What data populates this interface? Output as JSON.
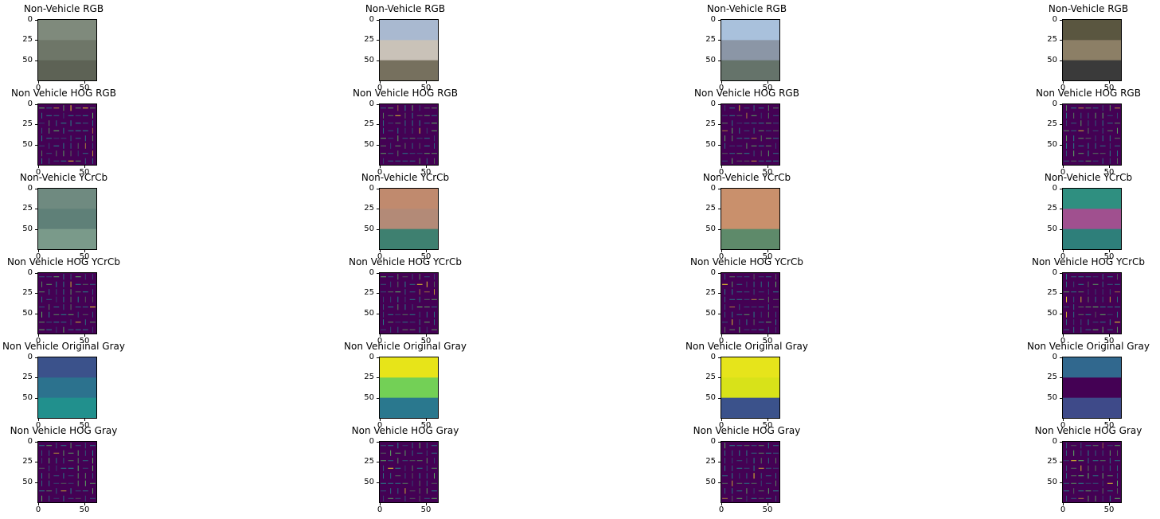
{
  "figure": {
    "row_titles": [
      "Non-Vehicle RGB",
      "Non Vehicle HOG RGB",
      "Non-Vehicle YCrCb",
      "Non Vehicle HOG YCrCb",
      "Non Vehicle Original Gray",
      "Non Vehicle HOG Gray"
    ],
    "row_kinds": [
      "rgb",
      "hog",
      "ycrcb",
      "hog",
      "gray",
      "hog"
    ],
    "columns": 4,
    "axes": {
      "yticks": [
        "0",
        "25",
        "50"
      ],
      "xticks": [
        "0",
        "50"
      ]
    },
    "colors": {
      "viridis_dark": "#440154",
      "viridis_mid": "#21908d",
      "viridis_light": "#5dc863",
      "viridis_yellow": "#fde725"
    },
    "images": [
      {
        "rgb": [
          "#7f8a7c",
          "#6e7668",
          "#5d6255"
        ],
        "ycrcb": [
          "#6f8a80",
          "#5f8078",
          "#7a9a8a"
        ],
        "gray": [
          "#3b528b",
          "#2c728e",
          "#21908d"
        ]
      },
      {
        "rgb": [
          "#a9b9d0",
          "#c9c2b8",
          "#76705e"
        ],
        "ycrcb": [
          "#c08a6e",
          "#b38a77",
          "#3e8070"
        ],
        "gray": [
          "#e7e419",
          "#73d056",
          "#2a788e"
        ]
      },
      {
        "rgb": [
          "#a9c1dc",
          "#8b96a6",
          "#65736a"
        ],
        "ycrcb": [
          "#c9906c",
          "#c9906c",
          "#5e8a6a"
        ],
        "gray": [
          "#e6e41b",
          "#d8e219",
          "#3b528b"
        ]
      },
      {
        "rgb": [
          "#5a5640",
          "#8c7f66",
          "#3a3a3a"
        ],
        "ycrcb": [
          "#2f8f80",
          "#a0508f",
          "#2e7f7a"
        ],
        "gray": [
          "#31688e",
          "#440154",
          "#3e4a89"
        ]
      }
    ]
  }
}
